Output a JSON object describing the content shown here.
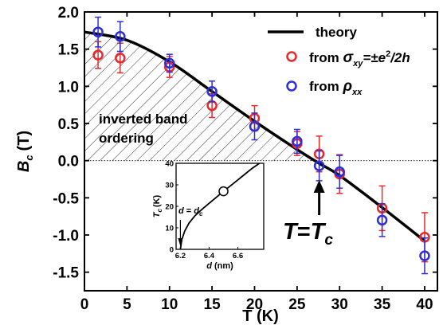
{
  "chart_data": [
    {
      "type": "scatter",
      "xlabel": "T (K)",
      "ylabel": "B_c (T)",
      "ylabel_main": "B",
      "ylabel_sub": "c",
      "ylabel_unit": "(T)",
      "xlim": [
        0,
        41.5
      ],
      "ylim": [
        -1.75,
        2.0
      ],
      "xticks": [
        0,
        5,
        10,
        15,
        20,
        25,
        30,
        35,
        40
      ],
      "yticks": [
        -1.5,
        -1.0,
        -0.5,
        0.0,
        0.5,
        1.0,
        1.5,
        2.0
      ],
      "xtick_labels": [
        "0",
        "5",
        "10",
        "15",
        "20",
        "25",
        "30",
        "35",
        "40"
      ],
      "ytick_labels": [
        "-1.5",
        "-1.0",
        "-0.5",
        "0.0",
        "0.5",
        "1.0",
        "1.5",
        "2.0"
      ],
      "legend_placement": "top-right",
      "series": [
        {
          "name": "theory",
          "kind": "line",
          "color": "#000000",
          "x": [
            0,
            5,
            10,
            15,
            20,
            25,
            27.5,
            30,
            35,
            40
          ],
          "y": [
            1.73,
            1.62,
            1.33,
            0.93,
            0.53,
            0.15,
            -0.03,
            -0.2,
            -0.63,
            -1.08
          ]
        },
        {
          "name": "from σxy=±e²/2h",
          "name_prefix": "from ",
          "name_sigma": "σ",
          "name_sigma_sub": "xy",
          "name_rest": "=±e",
          "name_sup": "2",
          "name_tail": "/2h",
          "kind": "points",
          "color": "#e8282c",
          "x": [
            1.6,
            4.2,
            10,
            15,
            20,
            25,
            27.6,
            30,
            35,
            40
          ],
          "y": [
            1.42,
            1.38,
            1.26,
            0.74,
            0.57,
            0.23,
            0.09,
            -0.18,
            -0.64,
            -1.03
          ],
          "err": [
            0.18,
            0.2,
            0.14,
            0.16,
            0.17,
            0.16,
            0.24,
            0.26,
            0.3,
            0.33
          ]
        },
        {
          "name": "from ρxx",
          "name_prefix": "from ",
          "name_rho": "ρ",
          "name_rho_sub": "xx",
          "kind": "points",
          "color": "#2d2ed6",
          "x": [
            1.6,
            4.2,
            10,
            15,
            20,
            25,
            27.6,
            30,
            35,
            40
          ],
          "y": [
            1.73,
            1.67,
            1.31,
            0.93,
            0.46,
            0.26,
            -0.07,
            -0.15,
            -0.8,
            -1.28
          ],
          "err": [
            0.2,
            0.2,
            0.12,
            0.14,
            0.18,
            0.16,
            0.2,
            0.22,
            0.22,
            0.24
          ]
        }
      ],
      "annotations": {
        "region_label_line1": "inverted band",
        "region_label_line2": "ordering",
        "arrow_label_T": "T",
        "arrow_label_eq": "=",
        "arrow_label_Tc": "T",
        "arrow_label_sub": "c",
        "arrow_x": 27.6
      }
    },
    {
      "type": "line",
      "inset": true,
      "xlabel": "d (nm)",
      "ylabel": "T_c (K)",
      "ylabel_main": "T",
      "ylabel_sub": "c",
      "ylabel_unit": "(K)",
      "xlim": [
        6.17,
        6.78
      ],
      "ylim": [
        0,
        40
      ],
      "xticks": [
        6.2,
        6.4,
        6.6
      ],
      "yticks": [
        0,
        10,
        20,
        30,
        40
      ],
      "xtick_labels": [
        "6.2",
        "6.4",
        "6.6"
      ],
      "ytick_labels": [
        "0",
        "10",
        "20",
        "30",
        "40"
      ],
      "series": [
        {
          "name": "",
          "color": "#000000",
          "x": [
            6.2,
            6.21,
            6.23,
            6.26,
            6.3,
            6.35,
            6.4,
            6.45,
            6.5,
            6.55,
            6.6,
            6.65,
            6.7,
            6.75
          ],
          "y": [
            0,
            4.5,
            8.5,
            12.2,
            15.5,
            18.6,
            21.4,
            24.2,
            27.0,
            29.6,
            32.3,
            35.0,
            37.7,
            40.0
          ]
        }
      ],
      "marker": {
        "x": 6.5,
        "y": 27.0
      },
      "annotation": {
        "label_d": "d",
        "label_eq": " = ",
        "label_dc": "d",
        "label_sub": "c",
        "arrow_x": 6.2
      }
    }
  ]
}
